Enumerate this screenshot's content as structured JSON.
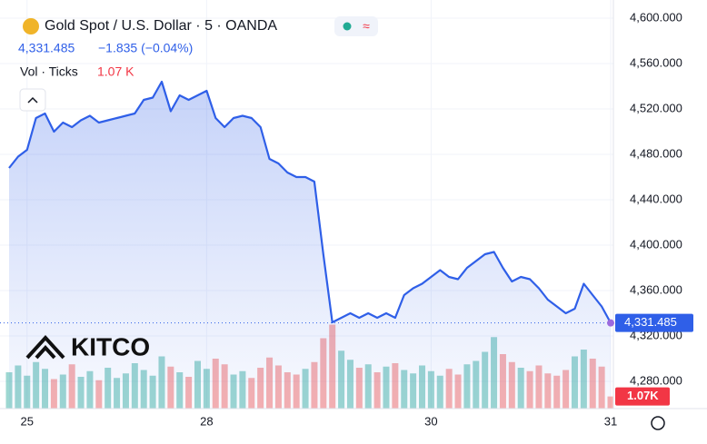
{
  "header": {
    "title": "Gold Spot / U.S. Dollar · 5 · OANDA",
    "price": "4,331.485",
    "change": "−1.835 (−0.04%)",
    "indicator": "Vol · Ticks",
    "indicator_value": "1.07 K"
  },
  "logo": "KITCO",
  "chart_data": {
    "type": "line",
    "categories": [
      null,
      null,
      "25",
      null,
      null,
      null,
      null,
      null,
      null,
      null,
      null,
      null,
      null,
      null,
      null,
      null,
      null,
      null,
      null,
      null,
      null,
      null,
      "28",
      null,
      null,
      null,
      null,
      null,
      null,
      null,
      null,
      null,
      null,
      null,
      null,
      null,
      null,
      null,
      null,
      null,
      null,
      null,
      null,
      null,
      null,
      null,
      null,
      "30",
      null,
      null,
      null,
      null,
      null,
      null,
      null,
      null,
      null,
      null,
      null,
      null,
      null,
      null,
      null,
      null,
      null,
      null,
      null,
      "31"
    ],
    "values": [
      4468,
      4478,
      4484,
      4512,
      4516,
      4500,
      4508,
      4504,
      4510,
      4514,
      4508,
      4510,
      4512,
      4514,
      4516,
      4528,
      4530,
      4544,
      4518,
      4532,
      4528,
      4532,
      4536,
      4512,
      4504,
      4512,
      4514,
      4512,
      4504,
      4476,
      4472,
      4464,
      4460,
      4460,
      4456,
      4392,
      4332,
      4336,
      4340,
      4336,
      4340,
      4336,
      4340,
      4336,
      4356,
      4362,
      4366,
      4372,
      4378,
      4372,
      4370,
      4380,
      4386,
      4392,
      4394,
      4380,
      4368,
      4372,
      4370,
      4362,
      4352,
      4346,
      4340,
      4344,
      4366,
      4356,
      4346,
      4331.485
    ],
    "color": "#2f5fe8",
    "ylim": [
      4256,
      4616
    ],
    "yticks": [
      {
        "value": 4280,
        "label": "4,280.000"
      },
      {
        "value": 4320,
        "label": "4,320.000"
      },
      {
        "value": 4360,
        "label": "4,360.000"
      },
      {
        "value": 4400,
        "label": "4,400.000"
      },
      {
        "value": 4440,
        "label": "4,440.000"
      },
      {
        "value": 4480,
        "label": "4,480.000"
      },
      {
        "value": 4520,
        "label": "4,520.000"
      },
      {
        "value": 4560,
        "label": "4,560.000"
      },
      {
        "value": 4600,
        "label": "4,600.000"
      }
    ],
    "grid": true,
    "price_tag": {
      "value": 4331.485,
      "label": "4,331.485"
    },
    "volume": {
      "values": [
        3.2,
        3.8,
        2.9,
        4.1,
        3.5,
        2.6,
        3.0,
        3.9,
        2.8,
        3.3,
        2.5,
        3.6,
        2.7,
        3.1,
        4.0,
        3.4,
        2.9,
        4.6,
        3.7,
        3.2,
        2.8,
        4.2,
        3.5,
        4.4,
        3.9,
        3.0,
        3.3,
        2.7,
        3.6,
        4.5,
        3.8,
        3.2,
        3.0,
        3.5,
        4.1,
        6.2,
        7.4,
        5.1,
        4.3,
        3.6,
        3.9,
        3.2,
        3.7,
        4.0,
        3.4,
        3.1,
        3.8,
        3.3,
        2.9,
        3.5,
        3.0,
        3.9,
        4.2,
        5.0,
        6.3,
        4.8,
        4.1,
        3.6,
        3.3,
        3.8,
        3.1,
        2.9,
        3.4,
        4.6,
        5.2,
        4.4,
        3.7,
        1.07
      ],
      "ylim": [
        0,
        8
      ],
      "last_label": "1.07K",
      "up_color": "#26a69a",
      "down_color": "#ef5350"
    }
  }
}
